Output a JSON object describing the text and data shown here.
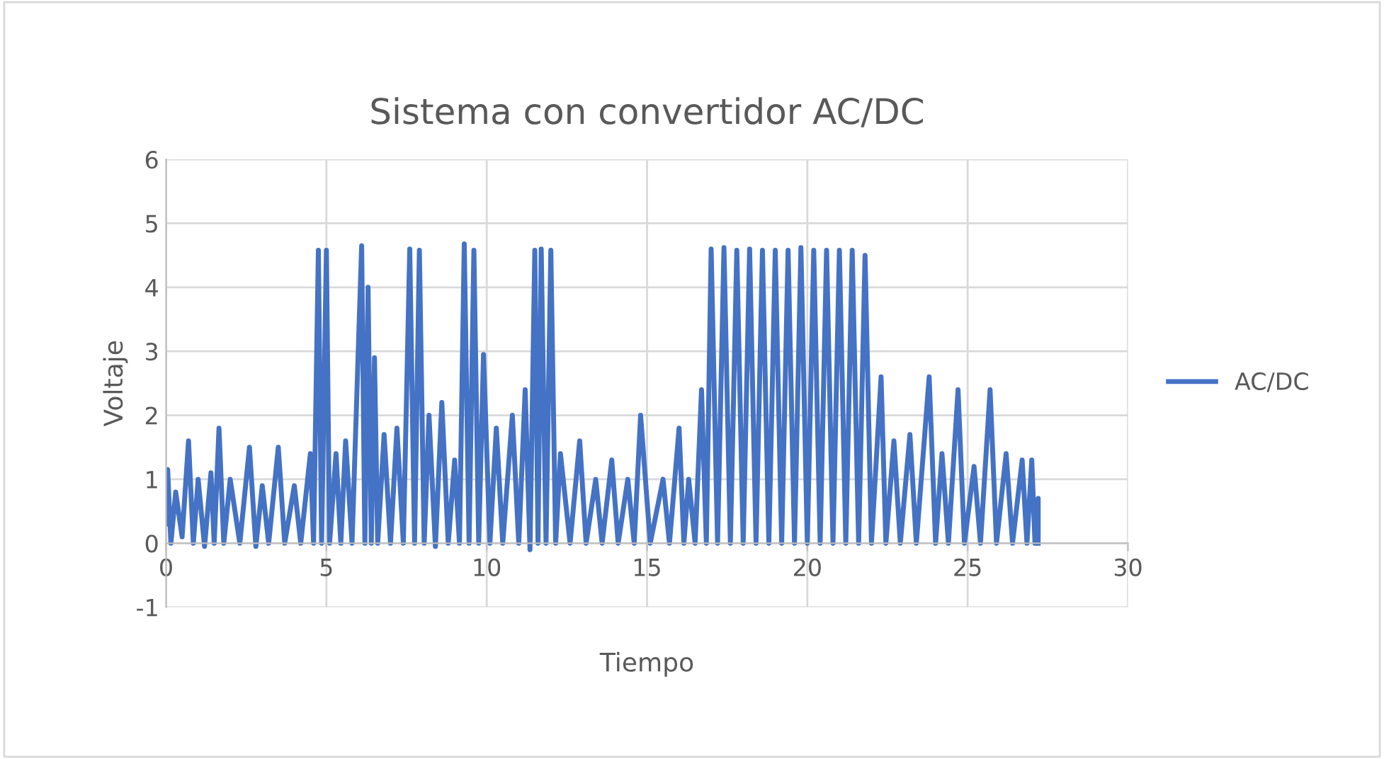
{
  "chart_data": {
    "type": "line",
    "title": "Sistema con convertidor AC/DC",
    "xlabel": "Tiempo",
    "ylabel": "Voltaje",
    "xlim": [
      0,
      30
    ],
    "ylim": [
      -1,
      6
    ],
    "xticks": [
      0,
      5,
      10,
      15,
      20,
      25,
      30
    ],
    "yticks": [
      -1,
      0,
      1,
      2,
      3,
      4,
      5,
      6
    ],
    "grid": true,
    "legend": "right",
    "marker": "none",
    "line_style": "solid",
    "series": [
      {
        "name": "AC/DC",
        "color": "#4472c4",
        "x": [
          0,
          0.05,
          0.15,
          0.3,
          0.5,
          0.7,
          0.85,
          1.0,
          1.2,
          1.4,
          1.5,
          1.65,
          1.8,
          2.0,
          2.3,
          2.6,
          2.8,
          3.0,
          3.2,
          3.5,
          3.7,
          4.0,
          4.2,
          4.5,
          4.6,
          4.75,
          4.85,
          5.0,
          5.1,
          5.3,
          5.45,
          5.6,
          5.8,
          6.1,
          6.2,
          6.3,
          6.4,
          6.5,
          6.6,
          6.8,
          7.0,
          7.2,
          7.4,
          7.6,
          7.75,
          7.9,
          8.05,
          8.2,
          8.4,
          8.6,
          8.8,
          9.0,
          9.15,
          9.3,
          9.45,
          9.6,
          9.75,
          9.9,
          10.1,
          10.3,
          10.5,
          10.8,
          11.0,
          11.2,
          11.35,
          11.5,
          11.6,
          11.7,
          11.85,
          12.0,
          12.15,
          12.3,
          12.6,
          12.9,
          13.1,
          13.4,
          13.6,
          13.9,
          14.1,
          14.4,
          14.6,
          14.8,
          15.1,
          15.5,
          15.7,
          16.0,
          16.15,
          16.3,
          16.5,
          16.7,
          16.85,
          17.0,
          17.2,
          17.4,
          17.6,
          17.8,
          18.0,
          18.2,
          18.4,
          18.6,
          18.8,
          19.0,
          19.2,
          19.4,
          19.6,
          19.8,
          20.0,
          20.2,
          20.4,
          20.6,
          20.8,
          21.0,
          21.2,
          21.4,
          21.6,
          21.8,
          22.0,
          22.3,
          22.45,
          22.7,
          22.9,
          23.2,
          23.4,
          23.8,
          24.0,
          24.2,
          24.4,
          24.7,
          24.9,
          25.2,
          25.4,
          25.7,
          25.9,
          26.2,
          26.4,
          26.7,
          26.85,
          27.0,
          27.1,
          27.2,
          27.2
        ],
        "values": [
          0.3,
          1.15,
          0,
          0.8,
          0.1,
          1.6,
          0,
          1.0,
          -0.05,
          1.1,
          0,
          1.8,
          0,
          1.0,
          0,
          1.5,
          -0.05,
          0.9,
          0,
          1.5,
          0,
          0.9,
          0,
          1.4,
          0,
          4.58,
          0,
          4.58,
          0,
          1.4,
          0,
          1.6,
          0,
          4.65,
          0,
          4.0,
          0,
          2.9,
          0,
          1.7,
          0,
          1.8,
          0,
          4.6,
          0,
          4.58,
          0,
          2.0,
          -0.05,
          2.2,
          0,
          1.3,
          0,
          4.68,
          0,
          4.58,
          0,
          2.95,
          0,
          1.8,
          0,
          2.0,
          0,
          2.4,
          -0.1,
          4.58,
          0,
          4.6,
          0,
          4.58,
          0,
          1.4,
          0,
          1.6,
          0,
          1.0,
          0,
          1.3,
          0,
          1.0,
          0,
          2.0,
          0,
          1.0,
          0,
          1.8,
          0,
          1.0,
          0,
          2.4,
          0,
          4.6,
          0,
          4.62,
          0,
          4.58,
          0,
          4.6,
          0,
          4.58,
          0,
          4.58,
          0,
          4.58,
          0,
          4.62,
          0,
          4.58,
          0,
          4.58,
          0,
          4.58,
          0,
          4.58,
          0,
          4.5,
          0,
          2.6,
          0,
          1.6,
          0,
          1.7,
          0,
          2.6,
          0,
          1.4,
          0,
          2.4,
          0,
          1.2,
          0,
          2.4,
          0,
          1.4,
          0,
          1.3,
          0,
          1.3,
          0,
          0.7,
          0
        ]
      }
    ]
  }
}
